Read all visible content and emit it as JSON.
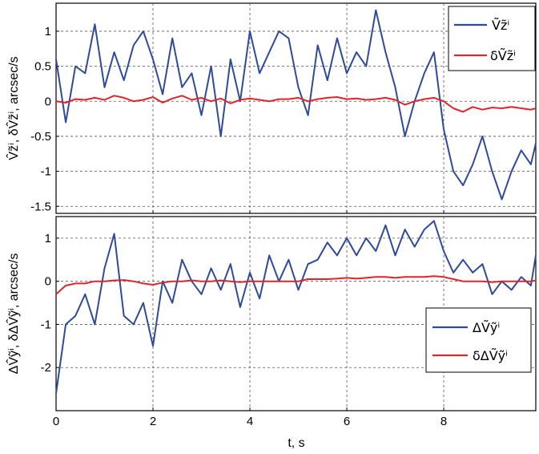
{
  "chart_data": [
    {
      "type": "line",
      "ylabel": "V̂z̃ⁱ, δV̂z̃ⁱ, arcsec/s",
      "xlim": [
        0,
        9.9
      ],
      "ylim": [
        -1.6,
        1.4
      ],
      "yticks": [
        "1",
        "0.5",
        "0",
        "-0.5",
        "-1",
        "-1.5"
      ],
      "ytick_values": [
        1,
        0.5,
        0,
        -0.5,
        -1,
        -1.5
      ],
      "xticks": [
        "0",
        "2",
        "4",
        "6",
        "8"
      ],
      "xtick_values": [
        0,
        2,
        4,
        6,
        8
      ],
      "grid": true,
      "legend_position": "top-right",
      "x": [
        0,
        0.2,
        0.4,
        0.6,
        0.8,
        1.0,
        1.2,
        1.4,
        1.6,
        1.8,
        2.0,
        2.2,
        2.4,
        2.6,
        2.8,
        3.0,
        3.2,
        3.4,
        3.6,
        3.8,
        4.0,
        4.2,
        4.4,
        4.6,
        4.8,
        5.0,
        5.2,
        5.4,
        5.6,
        5.8,
        6.0,
        6.2,
        6.4,
        6.6,
        6.8,
        7.0,
        7.2,
        7.4,
        7.6,
        7.8,
        8.0,
        8.2,
        8.4,
        8.6,
        8.8,
        9.0,
        9.2,
        9.4,
        9.6,
        9.8,
        9.9
      ],
      "series": [
        {
          "name": "Ṽz̃ⁱ",
          "color": "#2e4a9b",
          "values": [
            0.6,
            -0.3,
            0.5,
            0.4,
            1.1,
            0.2,
            0.7,
            0.3,
            0.8,
            1.0,
            0.6,
            0.1,
            0.9,
            0.2,
            0.4,
            -0.2,
            0.5,
            -0.5,
            0.6,
            0.0,
            1.0,
            0.4,
            0.7,
            1.0,
            0.9,
            0.2,
            -0.2,
            0.8,
            0.3,
            0.9,
            0.4,
            0.7,
            0.5,
            1.3,
            0.7,
            0.2,
            -0.5,
            0.0,
            0.4,
            0.7,
            -0.4,
            -1.0,
            -1.2,
            -0.9,
            -0.5,
            -1.0,
            -1.4,
            -1.0,
            -0.7,
            -0.9,
            -0.6
          ]
        },
        {
          "name": "δṼz̃ⁱ",
          "color": "#e0242b",
          "values": [
            0.0,
            -0.02,
            0.03,
            0.02,
            0.05,
            0.02,
            0.08,
            0.05,
            0.0,
            0.02,
            0.06,
            -0.02,
            0.04,
            0.08,
            0.02,
            0.05,
            0.0,
            0.04,
            -0.03,
            0.02,
            0.04,
            0.02,
            0.0,
            0.03,
            0.03,
            0.05,
            0.0,
            0.03,
            0.05,
            0.06,
            0.03,
            0.04,
            0.02,
            0.03,
            0.05,
            0.02,
            -0.05,
            0.0,
            0.03,
            0.05,
            0.0,
            -0.1,
            -0.15,
            -0.08,
            -0.12,
            -0.09,
            -0.1,
            -0.08,
            -0.1,
            -0.12,
            -0.1
          ]
        }
      ]
    },
    {
      "type": "line",
      "xlabel": "t, s",
      "ylabel": "ΔV̂ỹⁱ, δΔV̂ỹⁱ, arcsec/s",
      "xlim": [
        0,
        9.9
      ],
      "ylim": [
        -3.0,
        1.5
      ],
      "yticks": [
        "1",
        "0",
        "-1",
        "-2"
      ],
      "ytick_values": [
        1,
        0,
        -1,
        -2
      ],
      "xticks": [
        "0",
        "2",
        "4",
        "6",
        "8"
      ],
      "xtick_values": [
        0,
        2,
        4,
        6,
        8
      ],
      "grid": true,
      "legend_position": "lower-right",
      "x": [
        0,
        0.2,
        0.4,
        0.6,
        0.8,
        1.0,
        1.2,
        1.4,
        1.6,
        1.8,
        2.0,
        2.2,
        2.4,
        2.6,
        2.8,
        3.0,
        3.2,
        3.4,
        3.6,
        3.8,
        4.0,
        4.2,
        4.4,
        4.6,
        4.8,
        5.0,
        5.2,
        5.4,
        5.6,
        5.8,
        6.0,
        6.2,
        6.4,
        6.6,
        6.8,
        7.0,
        7.2,
        7.4,
        7.6,
        7.8,
        8.0,
        8.2,
        8.4,
        8.6,
        8.8,
        9.0,
        9.2,
        9.4,
        9.6,
        9.8,
        9.9
      ],
      "series": [
        {
          "name": "ΔṼỹⁱ",
          "color": "#2e4a9b",
          "values": [
            -2.6,
            -1.0,
            -0.8,
            -0.3,
            -1.0,
            0.3,
            1.1,
            -0.8,
            -1.0,
            -0.5,
            -1.5,
            0.0,
            -0.5,
            0.5,
            0.0,
            -0.3,
            0.3,
            -0.2,
            0.4,
            -0.6,
            0.2,
            -0.4,
            0.6,
            0.0,
            0.5,
            -0.2,
            0.4,
            0.5,
            0.9,
            0.6,
            1.0,
            0.6,
            1.0,
            0.7,
            1.3,
            0.6,
            1.2,
            0.8,
            1.2,
            1.4,
            0.7,
            0.2,
            0.5,
            0.2,
            0.4,
            -0.3,
            0.0,
            -0.2,
            0.1,
            -0.1,
            0.6
          ]
        },
        {
          "name": "δΔṼỹⁱ",
          "color": "#e0242b",
          "values": [
            -0.3,
            -0.1,
            -0.05,
            -0.05,
            0.0,
            0.0,
            0.02,
            0.03,
            0.0,
            -0.05,
            -0.08,
            -0.03,
            0.0,
            0.0,
            0.02,
            0.0,
            0.0,
            0.02,
            0.0,
            -0.02,
            0.0,
            0.0,
            0.0,
            0.0,
            0.0,
            0.0,
            0.05,
            0.05,
            0.05,
            0.06,
            0.08,
            0.06,
            0.08,
            0.1,
            0.1,
            0.08,
            0.1,
            0.1,
            0.1,
            0.12,
            0.1,
            0.05,
            0.0,
            0.0,
            0.0,
            -0.02,
            0.0,
            0.0,
            0.0,
            0.0,
            0.02
          ]
        }
      ]
    }
  ]
}
